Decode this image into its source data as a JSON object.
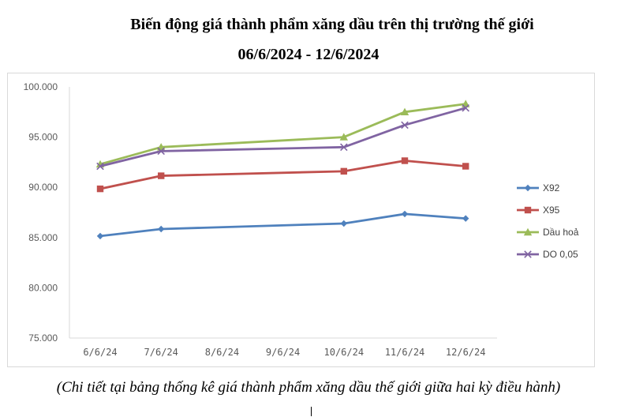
{
  "title_line1": "Biến động giá thành phẩm xăng dầu trên thị trường thế giới",
  "title_line2": "06/6/2024 - 12/6/2024",
  "caption": "(Chi tiết tại bảng thống kê giá thành phẩm xăng dầu thế giới giữa hai kỳ điều hành)",
  "chart_data": {
    "type": "line",
    "title": "",
    "xlabel": "",
    "ylabel": "",
    "categories": [
      "6/6/24",
      "7/6/24",
      "8/6/24",
      "9/6/24",
      "10/6/24",
      "11/6/24",
      "12/6/24"
    ],
    "ylim": [
      75000,
      100000
    ],
    "yticks": [
      75000,
      80000,
      85000,
      90000,
      95000,
      100000
    ],
    "ytick_labels": [
      "75.000",
      "80.000",
      "85.000",
      "90.000",
      "95.000",
      "100.000"
    ],
    "grid": false,
    "legend_position": "right",
    "series": [
      {
        "name": "X92",
        "color": "#4f81bd",
        "marker": "diamond",
        "values": [
          85150,
          85850,
          null,
          null,
          86400,
          87350,
          86900
        ]
      },
      {
        "name": "X95",
        "color": "#c0504d",
        "marker": "square",
        "values": [
          89850,
          91150,
          null,
          null,
          91600,
          92650,
          92100
        ]
      },
      {
        "name": "Dầu hoả",
        "color": "#9bbb59",
        "marker": "triangle",
        "values": [
          92300,
          94000,
          null,
          null,
          95000,
          97500,
          98300
        ]
      },
      {
        "name": "DO 0,05",
        "color": "#8064a2",
        "marker": "x",
        "values": [
          92100,
          93600,
          null,
          null,
          94000,
          96200,
          97900
        ]
      }
    ]
  }
}
